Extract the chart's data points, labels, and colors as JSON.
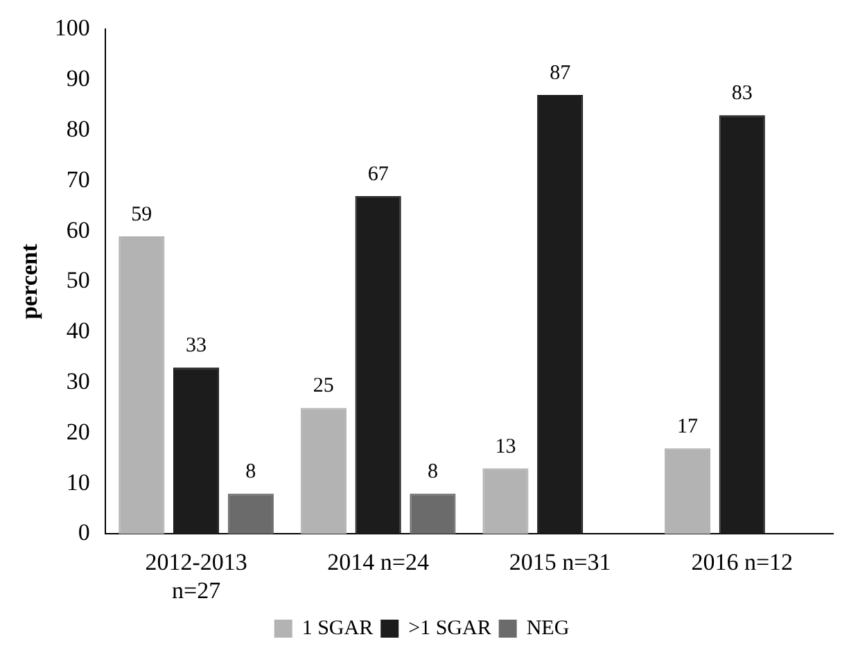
{
  "chart_data": {
    "type": "bar",
    "ylabel": "percent",
    "categories": [
      "2012-2013 n=27",
      "2014 n=24",
      "2015 n=31",
      "2016 n=12"
    ],
    "series": [
      {
        "name": "1 SGAR",
        "color": "#b3b3b3",
        "values": [
          59,
          25,
          13,
          17
        ]
      },
      {
        "name": ">1 SGAR",
        "color": "#1c1c1c",
        "values": [
          33,
          67,
          87,
          83
        ]
      },
      {
        "name": "NEG",
        "color": "#6b6b6b",
        "values": [
          8,
          8,
          null,
          null
        ]
      }
    ],
    "ylim": [
      0,
      100
    ],
    "yticks": [
      0,
      10,
      20,
      30,
      40,
      50,
      60,
      70,
      80,
      90,
      100
    ],
    "grid": false,
    "legend": "bottom",
    "data_labels": true
  }
}
